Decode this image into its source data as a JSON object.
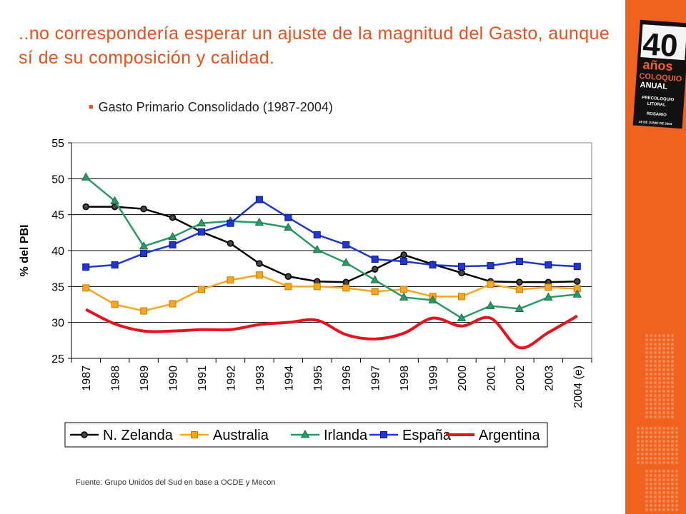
{
  "slide": {
    "title": "..no correspondería esperar un ajuste de la magnitud del Gasto, aunque sí de su composición y calidad.",
    "subtitle": "Gasto Primario Consolidado (1987-2004)",
    "source": "Fuente: Grupo Unidos del Sud en base a OCDE y Mecon"
  },
  "logo": {
    "number": "40",
    "word": "años",
    "line1": "COLOQUIO",
    "line2": "ANUAL",
    "line3": "PRECOLOQUIO",
    "line4": "LITORAL",
    "line5": "ROSARIO",
    "line6": "29 DE JUNIO DE 2004"
  },
  "colors": {
    "accent": "#e8501c",
    "sidebar": "#f0621f",
    "nzelanda": "#000000",
    "australia": "#f5a623",
    "irlanda": "#2a9a64",
    "espana": "#1f35d6",
    "argentina": "#e8121c"
  },
  "chart_data": {
    "type": "line",
    "ylabel": "% del PBI",
    "ylim": [
      25,
      55
    ],
    "yticks": [
      25,
      30,
      35,
      40,
      45,
      50,
      55
    ],
    "categories": [
      "1987",
      "1988",
      "1989",
      "1990",
      "1991",
      "1992",
      "1993",
      "1994",
      "1995",
      "1996",
      "1997",
      "1998",
      "1999",
      "2000",
      "2001",
      "2002",
      "2003",
      "2004 (e)"
    ],
    "grid": "horizontal",
    "legend_position": "bottom",
    "series": [
      {
        "name": "N. Zelanda",
        "marker": "circle",
        "color": "#000000",
        "values": [
          46.1,
          46.1,
          45.8,
          44.6,
          42.6,
          41.0,
          38.2,
          36.4,
          35.7,
          35.6,
          37.4,
          39.4,
          38.1,
          36.9,
          35.7,
          35.6,
          35.6,
          35.7
        ]
      },
      {
        "name": "Australia",
        "marker": "square",
        "color": "#f5a623",
        "values": [
          34.8,
          32.5,
          31.6,
          32.6,
          34.6,
          35.9,
          36.6,
          35.0,
          35.0,
          34.8,
          34.3,
          34.6,
          33.6,
          33.6,
          35.3,
          34.6,
          34.9,
          34.7
        ]
      },
      {
        "name": "Irlanda",
        "marker": "triangle",
        "color": "#2a9a64",
        "values": [
          50.2,
          46.9,
          40.6,
          41.9,
          43.8,
          44.1,
          43.9,
          43.2,
          40.1,
          38.3,
          35.9,
          33.5,
          33.1,
          30.6,
          32.3,
          31.9,
          33.5,
          33.9
        ]
      },
      {
        "name": "España",
        "marker": "square",
        "color": "#1f35d6",
        "values": [
          37.7,
          38.0,
          39.6,
          40.8,
          42.6,
          43.8,
          47.1,
          44.6,
          42.2,
          40.8,
          38.8,
          38.5,
          38.0,
          37.8,
          37.9,
          38.5,
          38.0,
          37.8
        ]
      },
      {
        "name": "Argentina",
        "marker": "none",
        "color": "#e8121c",
        "smooth": true,
        "values": [
          31.8,
          29.8,
          28.8,
          28.8,
          29.0,
          29.0,
          29.7,
          30.0,
          30.3,
          28.3,
          27.7,
          28.5,
          30.6,
          29.5,
          30.6,
          26.5,
          28.6,
          30.9
        ]
      }
    ]
  }
}
